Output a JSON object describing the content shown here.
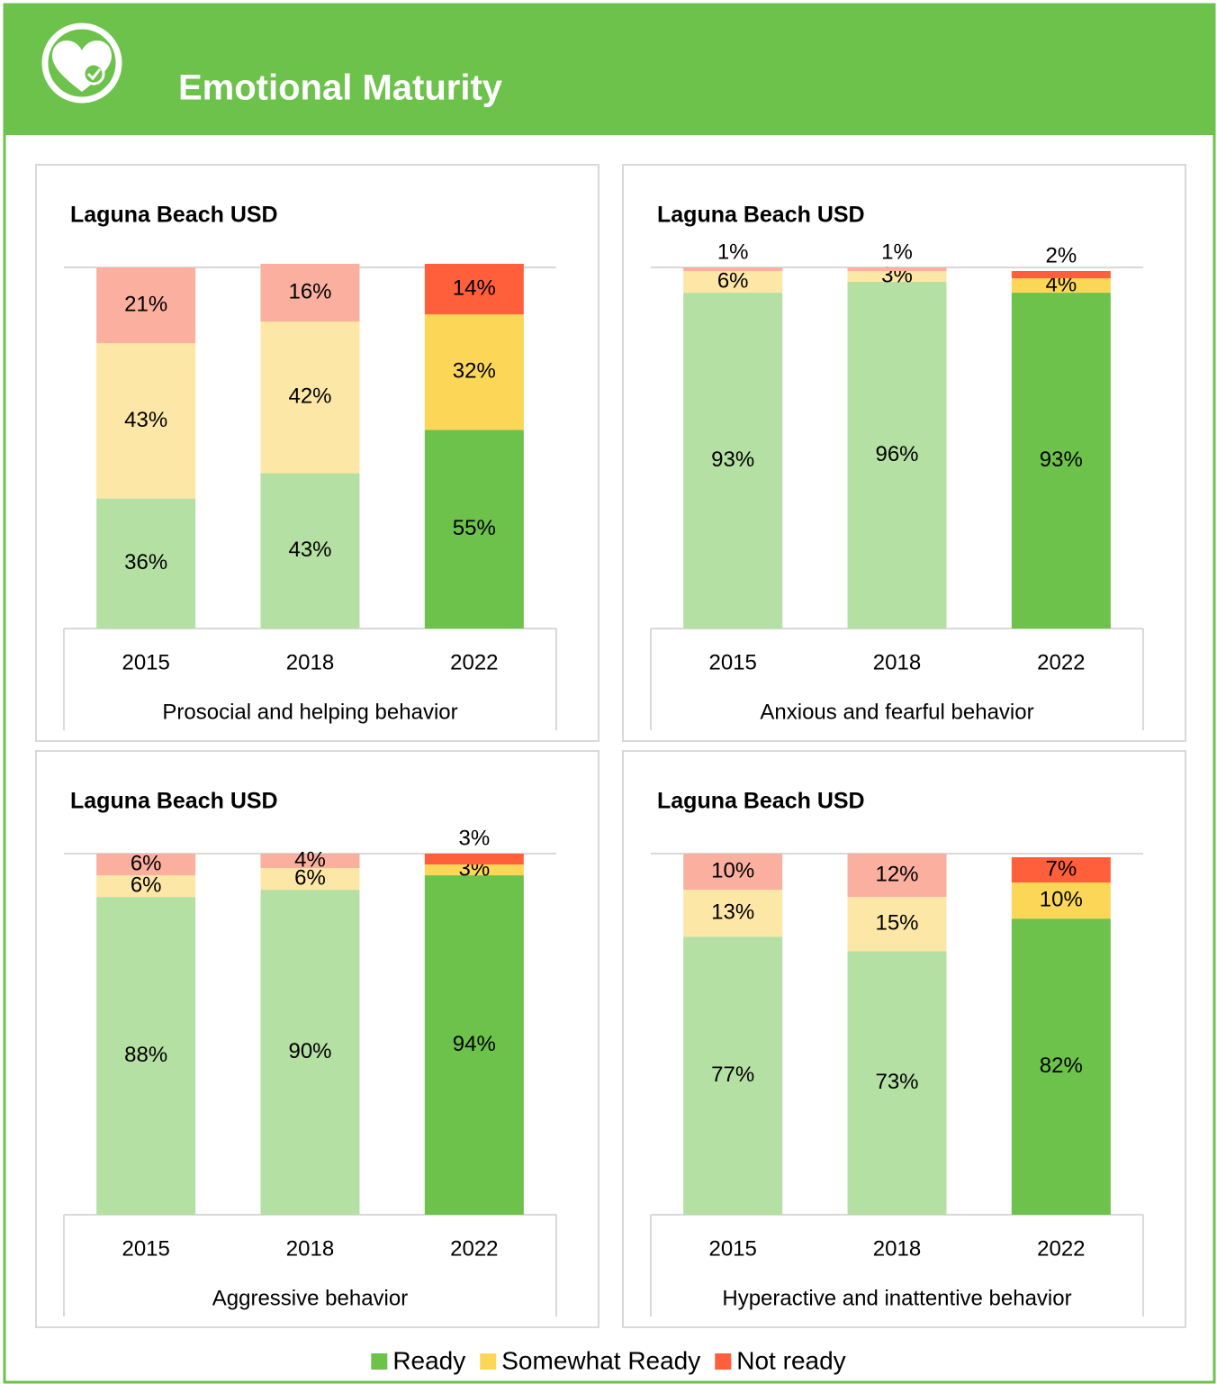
{
  "header": {
    "title": "Emotional Maturity"
  },
  "legend": [
    {
      "name": "Ready",
      "color": "#6cc24a"
    },
    {
      "name": "Somewhat Ready",
      "color": "#fcd757"
    },
    {
      "name": "Not ready",
      "color": "#ff5f3b"
    }
  ],
  "chart_data": [
    {
      "type": "bar",
      "stacked": true,
      "title": "Laguna Beach USD",
      "x_label": "Prosocial and helping behavior",
      "categories": [
        "2015",
        "2018",
        "2022"
      ],
      "ylim": [
        0,
        100
      ],
      "series": [
        {
          "values": [
            36,
            43,
            55
          ],
          "value_labels": [
            "36%",
            "43%",
            "55%"
          ],
          "colors": [
            "#b5e0a3",
            "#b5e0a3",
            "#6cc24a"
          ]
        },
        {
          "values": [
            43,
            42,
            32
          ],
          "value_labels": [
            "43%",
            "42%",
            "32%"
          ],
          "colors": [
            "#fde7a6",
            "#fde7a6",
            "#fcd757"
          ]
        },
        {
          "values": [
            21,
            16,
            14
          ],
          "value_labels": [
            "21%",
            "16%",
            "14%"
          ],
          "colors": [
            "#fbaf9f",
            "#fbaf9f",
            "#ff5f3b"
          ]
        }
      ]
    },
    {
      "type": "bar",
      "stacked": true,
      "title": "Laguna Beach USD",
      "x_label": "Anxious and fearful behavior",
      "categories": [
        "2015",
        "2018",
        "2022"
      ],
      "ylim": [
        0,
        100
      ],
      "series": [
        {
          "values": [
            93,
            96,
            93
          ],
          "value_labels": [
            "93%",
            "96%",
            "93%"
          ],
          "colors": [
            "#b5e0a3",
            "#b5e0a3",
            "#6cc24a"
          ]
        },
        {
          "values": [
            6,
            3,
            4
          ],
          "value_labels": [
            "6%",
            "3%",
            "4%"
          ],
          "colors": [
            "#fde7a6",
            "#fde7a6",
            "#fcd757"
          ]
        },
        {
          "values": [
            1,
            1,
            2
          ],
          "value_labels": [
            "1%",
            "1%",
            "2%"
          ],
          "colors": [
            "#fbaf9f",
            "#fbaf9f",
            "#ff5f3b"
          ]
        }
      ]
    },
    {
      "type": "bar",
      "stacked": true,
      "title": "Laguna Beach USD",
      "x_label": "Aggressive behavior",
      "categories": [
        "2015",
        "2018",
        "2022"
      ],
      "ylim": [
        0,
        100
      ],
      "series": [
        {
          "values": [
            88,
            90,
            94
          ],
          "value_labels": [
            "88%",
            "90%",
            "94%"
          ],
          "colors": [
            "#b5e0a3",
            "#b5e0a3",
            "#6cc24a"
          ]
        },
        {
          "values": [
            6,
            6,
            3
          ],
          "value_labels": [
            "6%",
            "6%",
            "3%"
          ],
          "colors": [
            "#fde7a6",
            "#fde7a6",
            "#fcd757"
          ]
        },
        {
          "values": [
            6,
            4,
            3
          ],
          "value_labels": [
            "6%",
            "4%",
            "3%"
          ],
          "colors": [
            "#fbaf9f",
            "#fbaf9f",
            "#ff5f3b"
          ]
        }
      ]
    },
    {
      "type": "bar",
      "stacked": true,
      "title": "Laguna Beach USD",
      "x_label": "Hyperactive and inattentive behavior",
      "categories": [
        "2015",
        "2018",
        "2022"
      ],
      "ylim": [
        0,
        100
      ],
      "series": [
        {
          "values": [
            77,
            73,
            82
          ],
          "value_labels": [
            "77%",
            "73%",
            "82%"
          ],
          "colors": [
            "#b5e0a3",
            "#b5e0a3",
            "#6cc24a"
          ]
        },
        {
          "values": [
            13,
            15,
            10
          ],
          "value_labels": [
            "13%",
            "15%",
            "10%"
          ],
          "colors": [
            "#fde7a6",
            "#fde7a6",
            "#fcd757"
          ]
        },
        {
          "values": [
            10,
            12,
            7
          ],
          "value_labels": [
            "10%",
            "12%",
            "7%"
          ],
          "colors": [
            "#fbaf9f",
            "#fbaf9f",
            "#ff5f3b"
          ]
        }
      ]
    }
  ]
}
